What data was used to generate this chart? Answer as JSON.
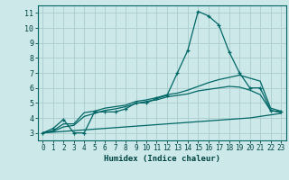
{
  "title": "",
  "xlabel": "Humidex (Indice chaleur)",
  "background_color": "#cce8e8",
  "grid_color": "#aacccc",
  "line_color": "#006666",
  "text_color": "#004444",
  "xlim": [
    -0.5,
    23.5
  ],
  "ylim": [
    2.5,
    11.5
  ],
  "xticks": [
    0,
    1,
    2,
    3,
    4,
    5,
    6,
    7,
    8,
    9,
    10,
    11,
    12,
    13,
    14,
    15,
    16,
    17,
    18,
    19,
    20,
    21,
    22,
    23
  ],
  "yticks": [
    3,
    4,
    5,
    6,
    7,
    8,
    9,
    10,
    11
  ],
  "series": [
    {
      "x": [
        0,
        1,
        2,
        3,
        4,
        5,
        6,
        7,
        8,
        9,
        10,
        11,
        12,
        13,
        14,
        15,
        16,
        17,
        18,
        19,
        20,
        21,
        22,
        23
      ],
      "y": [
        3.0,
        3.3,
        3.9,
        3.0,
        3.0,
        4.4,
        4.4,
        4.4,
        4.6,
        5.0,
        5.0,
        5.3,
        5.5,
        7.0,
        8.5,
        11.1,
        10.8,
        10.2,
        8.4,
        7.0,
        6.0,
        6.0,
        4.5,
        4.4
      ],
      "marker": "+"
    },
    {
      "x": [
        0,
        1,
        2,
        3,
        4,
        5,
        6,
        7,
        8,
        9,
        10,
        11,
        12,
        13,
        14,
        15,
        16,
        17,
        18,
        19,
        20,
        21,
        22,
        23
      ],
      "y": [
        3.0,
        3.15,
        3.6,
        3.6,
        4.35,
        4.45,
        4.65,
        4.75,
        4.85,
        5.1,
        5.2,
        5.35,
        5.55,
        5.65,
        5.85,
        6.1,
        6.35,
        6.55,
        6.7,
        6.85,
        6.65,
        6.45,
        4.65,
        4.45
      ],
      "marker": null
    },
    {
      "x": [
        0,
        1,
        2,
        3,
        4,
        5,
        6,
        7,
        8,
        9,
        10,
        11,
        12,
        13,
        14,
        15,
        16,
        17,
        18,
        19,
        20,
        21,
        22,
        23
      ],
      "y": [
        3.0,
        3.1,
        3.4,
        3.5,
        4.1,
        4.3,
        4.5,
        4.6,
        4.75,
        4.95,
        5.1,
        5.2,
        5.4,
        5.5,
        5.6,
        5.8,
        5.9,
        6.0,
        6.1,
        6.05,
        5.85,
        5.55,
        4.5,
        4.35
      ],
      "marker": null
    },
    {
      "x": [
        0,
        1,
        2,
        3,
        4,
        5,
        6,
        7,
        8,
        9,
        10,
        11,
        12,
        13,
        14,
        15,
        16,
        17,
        18,
        19,
        20,
        21,
        22,
        23
      ],
      "y": [
        3.0,
        3.05,
        3.1,
        3.15,
        3.2,
        3.25,
        3.3,
        3.35,
        3.4,
        3.45,
        3.5,
        3.55,
        3.6,
        3.65,
        3.7,
        3.75,
        3.8,
        3.85,
        3.9,
        3.95,
        4.0,
        4.1,
        4.2,
        4.3
      ],
      "marker": null
    }
  ]
}
